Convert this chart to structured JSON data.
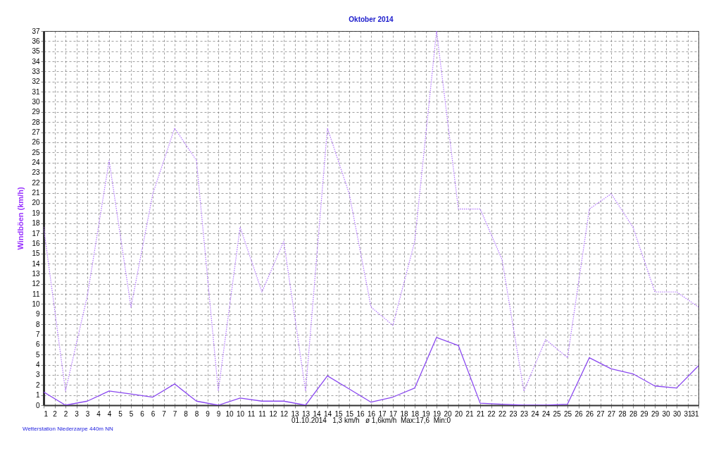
{
  "chart_data": {
    "type": "line",
    "title": "Oktober 2014",
    "ylabel": "Windböen (km/h)",
    "annotations": [
      "01.10.2014   1,3 km/h   ø 1,6km/h  Max:17,6  Min:0",
      "Wetterstation Niederzarpe 440m NN"
    ],
    "x": [
      1,
      2,
      3,
      4,
      5,
      6,
      7,
      8,
      9,
      10,
      11,
      12,
      13,
      14,
      15,
      16,
      17,
      18,
      19,
      20,
      21,
      22,
      23,
      24,
      25,
      26,
      27,
      28,
      29,
      30,
      31
    ],
    "series": [
      {
        "color": "#b070ff",
        "line_style": "dotted",
        "values": [
          17.6,
          1.4,
          10.8,
          24.2,
          9.7,
          20.9,
          27.4,
          24.2,
          1.4,
          17.6,
          11.2,
          16.2,
          1.4,
          27.4,
          20.9,
          9.7,
          7.9,
          16.2,
          37,
          19.4,
          19.4,
          14.4,
          1.4,
          6.5,
          4.7,
          19.4,
          20.9,
          17.6,
          11.2,
          11.2,
          9.7
        ]
      },
      {
        "color": "#8a48f0",
        "line_style": "solid",
        "values": [
          1.3,
          0,
          0.4,
          1.4,
          1.1,
          0.8,
          2.1,
          0.4,
          0,
          0.7,
          0.4,
          0.4,
          0,
          2.9,
          1.6,
          0.3,
          0.8,
          1.7,
          6.7,
          5.9,
          0.2,
          0.1,
          0,
          0,
          0.1,
          4.7,
          3.6,
          3.1,
          1.9,
          1.7,
          3.9
        ]
      }
    ],
    "xlim": [
      1,
      31
    ],
    "xticks": [
      1,
      {
        "value": 1.5,
        "label": "2"
      },
      2,
      {
        "value": 2.5,
        "label": "3"
      },
      3,
      {
        "value": 3.5,
        "label": "4"
      },
      4,
      {
        "value": 4.5,
        "label": "5"
      },
      5,
      {
        "value": 5.5,
        "label": "6"
      },
      6,
      {
        "value": 6.5,
        "label": "7"
      },
      7,
      {
        "value": 7.5,
        "label": "8"
      },
      8,
      {
        "value": 8.5,
        "label": "9"
      },
      9,
      {
        "value": 9.5,
        "label": "10"
      },
      10,
      {
        "value": 10.5,
        "label": "11"
      },
      11,
      {
        "value": 11.5,
        "label": "12"
      },
      12,
      {
        "value": 12.5,
        "label": "13"
      },
      13,
      {
        "value": 13.5,
        "label": "14"
      },
      14,
      {
        "value": 14.5,
        "label": "15"
      },
      15,
      {
        "value": 15.5,
        "label": "16"
      },
      16,
      {
        "value": 16.5,
        "label": "17"
      },
      17,
      {
        "value": 17.5,
        "label": "18"
      },
      18,
      {
        "value": 18.5,
        "label": "19"
      },
      19,
      {
        "value": 19.5,
        "label": "20"
      },
      20,
      {
        "value": 20.5,
        "label": "21"
      },
      21,
      {
        "value": 21.5,
        "label": "22"
      },
      22,
      {
        "value": 22.5,
        "label": "23"
      },
      23,
      {
        "value": 23.5,
        "label": "24"
      },
      24,
      {
        "value": 24.5,
        "label": "25"
      },
      25,
      {
        "value": 25.5,
        "label": "26"
      },
      26,
      {
        "value": 26.5,
        "label": "27"
      },
      27,
      {
        "value": 27.5,
        "label": "28"
      },
      28,
      {
        "value": 28.5,
        "label": "29"
      },
      29,
      {
        "value": 29.5,
        "label": "30"
      },
      30,
      {
        "value": 30.5,
        "label": "31"
      },
      31
    ],
    "ylim": [
      0,
      37
    ],
    "yticks": [
      0,
      1,
      2,
      3,
      4,
      5,
      6,
      7,
      8,
      9,
      10,
      11,
      12,
      13,
      14,
      15,
      16,
      17,
      18,
      19,
      20,
      21,
      22,
      23,
      24,
      25,
      26,
      27,
      28,
      29,
      30,
      31,
      32,
      33,
      34,
      35,
      36,
      37
    ],
    "grid": true,
    "marker": "none"
  }
}
